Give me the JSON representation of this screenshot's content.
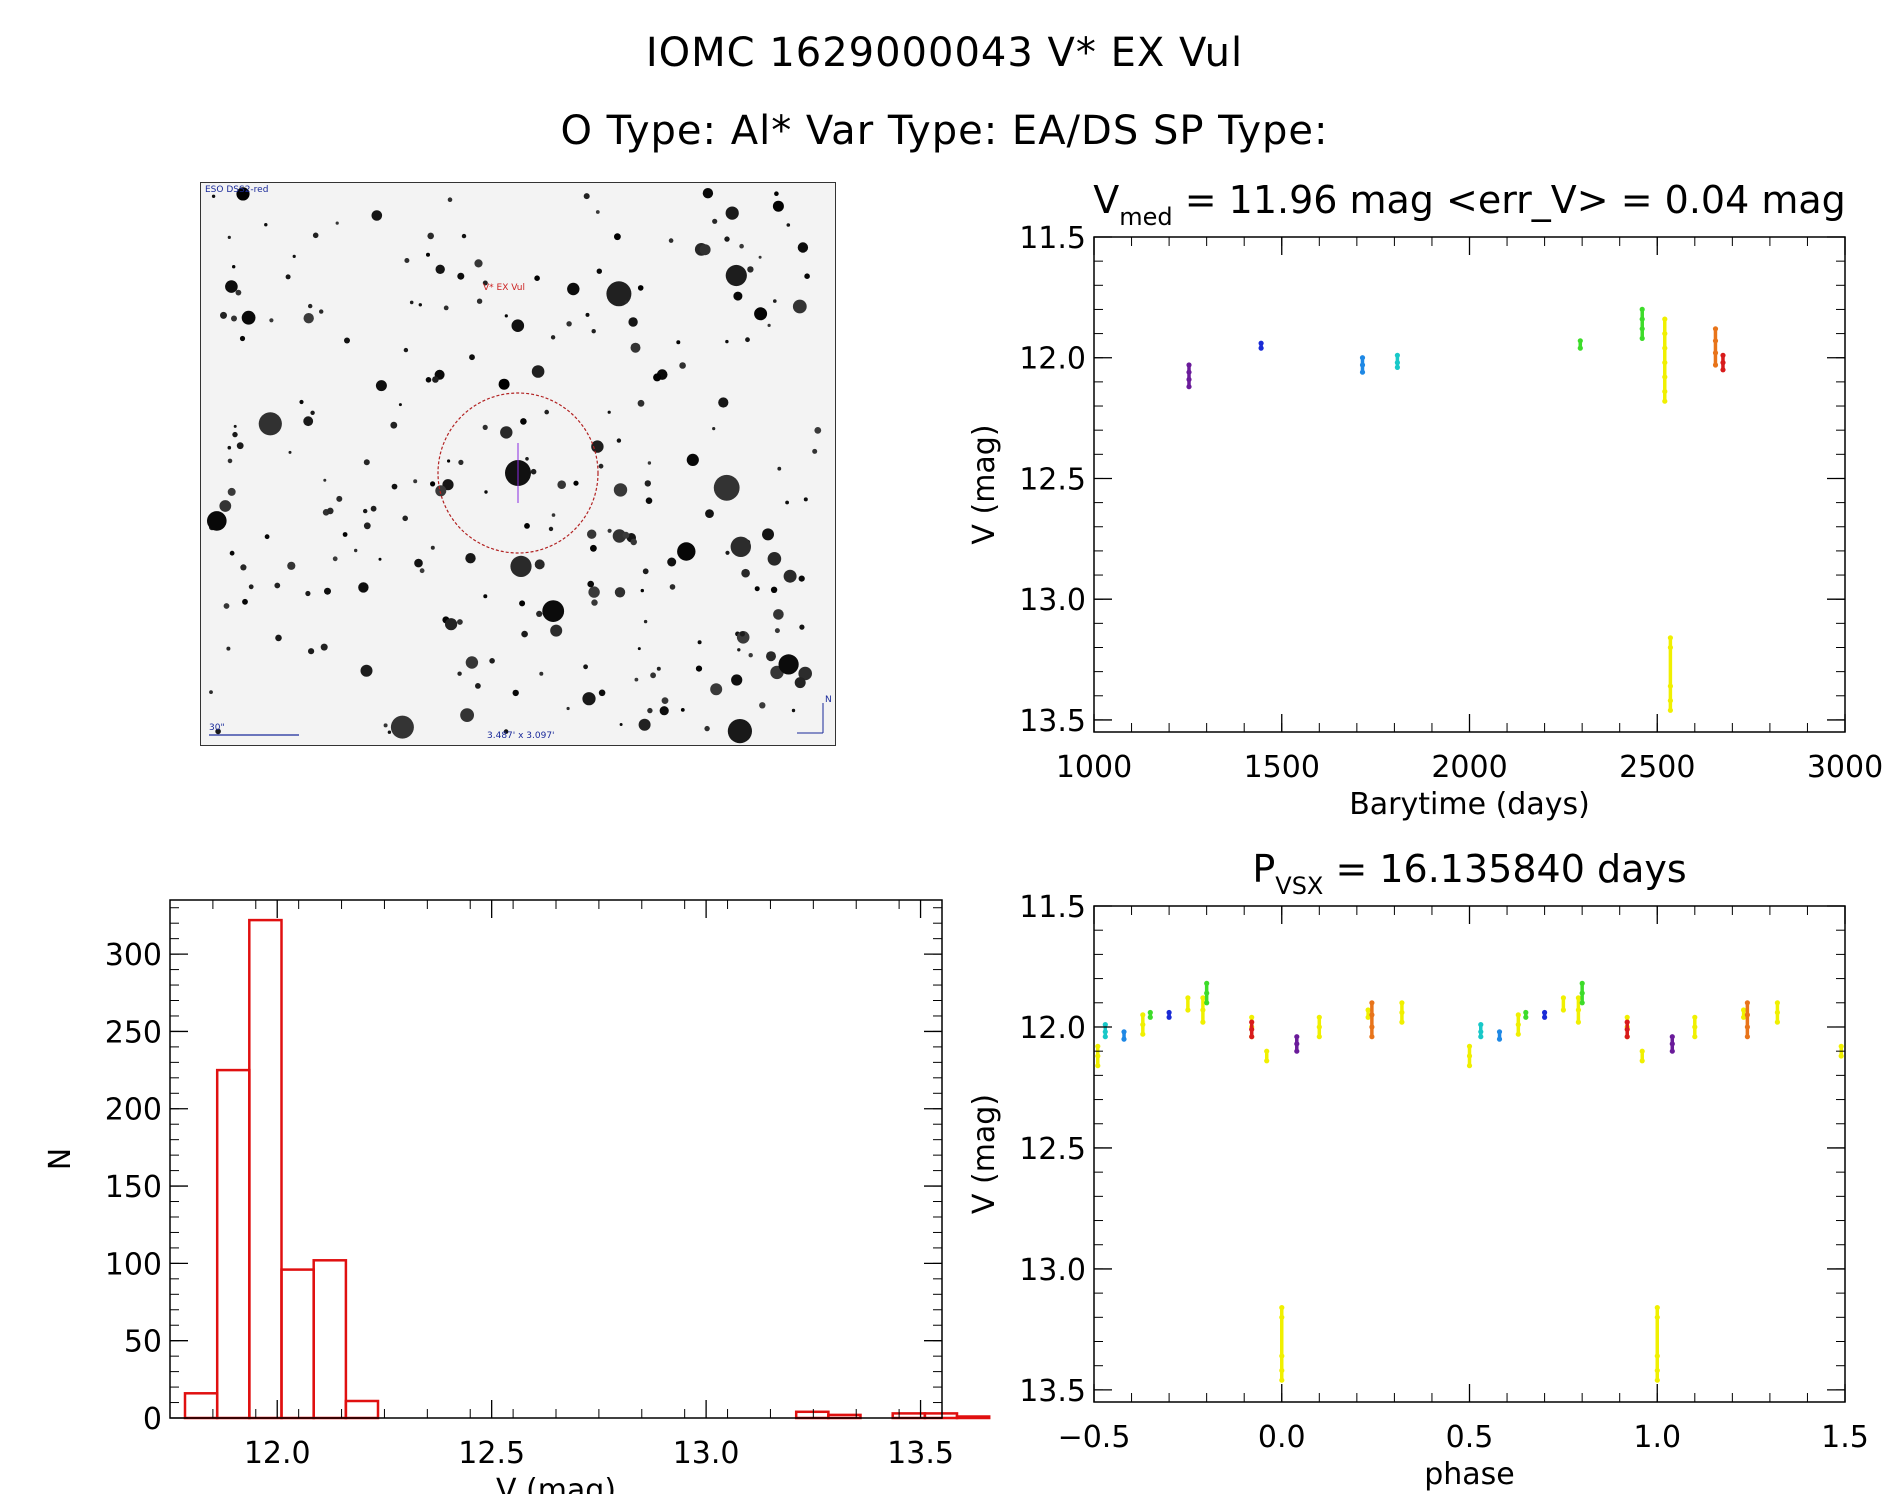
{
  "header": {
    "line1": "IOMC 1629000043    V* EX Vul",
    "line2": "O Type: Al*  Var Type: EA/DS  SP Type:"
  },
  "finder_image": {
    "survey_label": "ESO DSS2-red",
    "target_label": "V* EX Vul",
    "scale_label": "30\"",
    "size_label": "3.487' x 3.097'",
    "north_label": "N",
    "colors": {
      "circle": "#b22222",
      "annotation": "#1a2a9a",
      "target_label": "#cc2222"
    }
  },
  "chart_data": [
    {
      "id": "light-curve",
      "type": "scatter",
      "title_main": "V",
      "title_sub": "med",
      "title_rest": " = 11.96 mag <err_V> = 0.04 mag",
      "xlabel": "Barytime (days)",
      "ylabel": "V (mag)",
      "xlim": [
        1000,
        3000
      ],
      "ylim": [
        13.55,
        11.5
      ],
      "xticks": [
        "1000",
        "1500",
        "2000",
        "2500",
        "3000"
      ],
      "yticks": [
        "11.5",
        "12.0",
        "12.5",
        "13.0",
        "13.5"
      ],
      "series": [
        {
          "color": "#6a1b9a",
          "x": [
            1253
          ],
          "y": [
            [
              12.03,
              12.06,
              12.09,
              12.12
            ]
          ]
        },
        {
          "color": "#1a2bd6",
          "x": [
            1445
          ],
          "y": [
            [
              11.94,
              11.96
            ]
          ]
        },
        {
          "color": "#1e88e5",
          "x": [
            1715
          ],
          "y": [
            [
              12.0,
              12.03,
              12.06
            ]
          ]
        },
        {
          "color": "#18c8c8",
          "x": [
            1808
          ],
          "y": [
            [
              11.99,
              12.02,
              12.04
            ]
          ]
        },
        {
          "color": "#3ddc2a",
          "x": [
            2295,
            2460
          ],
          "y": [
            [
              11.93,
              11.96
            ],
            [
              11.8,
              11.84,
              11.88,
              11.92
            ]
          ]
        },
        {
          "color": "#f0f000",
          "x": [
            2520,
            2535
          ],
          "y": [
            [
              11.84,
              11.9,
              11.96,
              12.02,
              12.08,
              12.14,
              12.18
            ],
            [
              13.16,
              13.2,
              13.36,
              13.42,
              13.46
            ]
          ]
        },
        {
          "color": "#e8741a",
          "x": [
            2655
          ],
          "y": [
            [
              11.88,
              11.93,
              11.98,
              12.03
            ]
          ]
        },
        {
          "color": "#d81b1b",
          "x": [
            2675
          ],
          "y": [
            [
              11.99,
              12.02,
              12.05
            ]
          ]
        }
      ]
    },
    {
      "id": "histogram",
      "type": "bar",
      "xlabel": "V (mag)",
      "ylabel": "N",
      "xlim": [
        11.75,
        13.55
      ],
      "ylim": [
        0,
        335
      ],
      "xticks": [
        "12.0",
        "12.5",
        "13.0",
        "13.5"
      ],
      "yticks": [
        "0",
        "50",
        "100",
        "150",
        "200",
        "250",
        "300"
      ],
      "bin_width": 0.075,
      "bin_start": 11.785,
      "values": [
        16,
        225,
        322,
        96,
        102,
        11,
        0,
        0,
        0,
        0,
        0,
        0,
        0,
        0,
        0,
        0,
        0,
        0,
        0,
        4,
        2,
        0,
        3,
        3,
        1
      ],
      "color": "#e01010"
    },
    {
      "id": "phase-curve",
      "type": "scatter",
      "title_main": "P",
      "title_sub": "VSX",
      "title_rest": " = 16.135840 days",
      "xlabel": "phase",
      "ylabel": "V (mag)",
      "xlim": [
        -0.5,
        1.5
      ],
      "ylim": [
        13.55,
        11.5
      ],
      "xticks": [
        "−0.5",
        "0.0",
        "0.5",
        "1.0",
        "1.5"
      ],
      "yticks": [
        "11.5",
        "12.0",
        "12.5",
        "13.0",
        "13.5"
      ],
      "series": [
        {
          "color": "#f0f000",
          "x": [
            -0.49,
            -0.37,
            -0.25,
            -0.21,
            -0.08,
            -0.04,
            0.0,
            0.1,
            0.23,
            0.32,
            0.5,
            0.63,
            0.75,
            0.79,
            0.92,
            0.96,
            1.0,
            1.1,
            1.23,
            1.32,
            1.49
          ],
          "y": [
            [
              12.08,
              12.12,
              12.16
            ],
            [
              11.95,
              11.99,
              12.03
            ],
            [
              11.88,
              11.93
            ],
            [
              11.88,
              11.93,
              11.98
            ],
            [
              11.96,
              12.0,
              12.04
            ],
            [
              12.1,
              12.14
            ],
            [
              13.16,
              13.2,
              13.36,
              13.42,
              13.46
            ],
            [
              11.96,
              12.0,
              12.04
            ],
            [
              11.93,
              11.96
            ],
            [
              11.9,
              11.94,
              11.98
            ],
            [
              12.08,
              12.12,
              12.16
            ],
            [
              11.95,
              11.99,
              12.03
            ],
            [
              11.88,
              11.93
            ],
            [
              11.88,
              11.93,
              11.98
            ],
            [
              11.96,
              12.0,
              12.04
            ],
            [
              12.1,
              12.14
            ],
            [
              13.16,
              13.2,
              13.36,
              13.42,
              13.46
            ],
            [
              11.96,
              12.0,
              12.04
            ],
            [
              11.93,
              11.96
            ],
            [
              11.9,
              11.94,
              11.98
            ],
            [
              12.08,
              12.12
            ]
          ]
        },
        {
          "color": "#3ddc2a",
          "x": [
            -0.35,
            -0.2,
            0.65,
            0.8
          ],
          "y": [
            [
              11.94,
              11.96
            ],
            [
              11.82,
              11.86,
              11.9
            ],
            [
              11.94,
              11.96
            ],
            [
              11.82,
              11.86,
              11.9
            ]
          ]
        },
        {
          "color": "#1a2bd6",
          "x": [
            -0.3,
            0.7
          ],
          "y": [
            [
              11.94,
              11.96
            ],
            [
              11.94,
              11.96
            ]
          ]
        },
        {
          "color": "#18c8c8",
          "x": [
            -0.47,
            0.53
          ],
          "y": [
            [
              11.99,
              12.02,
              12.04
            ],
            [
              11.99,
              12.02,
              12.04
            ]
          ]
        },
        {
          "color": "#1e88e5",
          "x": [
            -0.42,
            0.58
          ],
          "y": [
            [
              12.02,
              12.05
            ],
            [
              12.02,
              12.05
            ]
          ]
        },
        {
          "color": "#d81b1b",
          "x": [
            -0.08,
            0.92
          ],
          "y": [
            [
              11.98,
              12.01,
              12.04
            ],
            [
              11.98,
              12.01,
              12.04
            ]
          ]
        },
        {
          "color": "#6a1b9a",
          "x": [
            0.04,
            1.04
          ],
          "y": [
            [
              12.04,
              12.07,
              12.1
            ],
            [
              12.04,
              12.07,
              12.1
            ]
          ]
        },
        {
          "color": "#e8741a",
          "x": [
            0.24,
            1.24
          ],
          "y": [
            [
              11.9,
              11.95,
              12.0,
              12.04
            ],
            [
              11.9,
              11.95,
              12.0,
              12.04
            ]
          ]
        }
      ]
    }
  ]
}
